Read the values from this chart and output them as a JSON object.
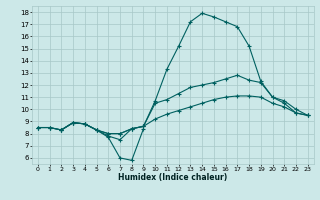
{
  "xlabel": "Humidex (Indice chaleur)",
  "xlim": [
    -0.5,
    23.5
  ],
  "ylim": [
    5.5,
    18.5
  ],
  "xticks": [
    0,
    1,
    2,
    3,
    4,
    5,
    6,
    7,
    8,
    9,
    10,
    11,
    12,
    13,
    14,
    15,
    16,
    17,
    18,
    19,
    20,
    21,
    22,
    23
  ],
  "yticks": [
    6,
    7,
    8,
    9,
    10,
    11,
    12,
    13,
    14,
    15,
    16,
    17,
    18
  ],
  "bg_color": "#cce8e8",
  "grid_color": "#a8c8c8",
  "line_color": "#006060",
  "curve1_x": [
    0,
    1,
    2,
    3,
    4,
    5,
    6,
    7,
    8,
    9,
    10,
    11,
    12,
    13,
    14,
    15,
    16,
    17,
    18,
    19,
    20,
    21,
    22,
    23
  ],
  "curve1_y": [
    8.5,
    8.5,
    8.3,
    8.9,
    8.8,
    8.3,
    8.0,
    8.0,
    8.4,
    8.6,
    10.7,
    13.3,
    15.2,
    17.2,
    17.9,
    17.6,
    17.2,
    16.8,
    15.2,
    12.3,
    11.0,
    10.5,
    9.7,
    9.5
  ],
  "curve2_x": [
    0,
    1,
    2,
    3,
    4,
    5,
    6,
    7,
    8,
    9,
    10,
    11,
    12,
    13,
    14,
    15,
    16,
    17,
    18,
    19,
    20,
    21,
    22,
    23
  ],
  "curve2_y": [
    8.5,
    8.5,
    8.3,
    8.9,
    8.8,
    8.3,
    8.0,
    8.0,
    8.4,
    8.6,
    9.2,
    9.6,
    9.9,
    10.2,
    10.5,
    10.8,
    11.0,
    11.1,
    11.1,
    11.0,
    10.5,
    10.2,
    9.7,
    9.5
  ],
  "curve3_x": [
    0,
    1,
    2,
    3,
    4,
    5,
    6,
    7,
    8,
    9,
    10,
    11,
    12,
    13,
    14,
    15,
    16,
    17,
    18,
    19,
    20,
    21,
    22,
    23
  ],
  "curve3_y": [
    8.5,
    8.5,
    8.3,
    8.9,
    8.8,
    8.3,
    7.8,
    7.5,
    8.4,
    8.6,
    10.5,
    10.8,
    11.3,
    11.8,
    12.0,
    12.2,
    12.5,
    12.8,
    12.4,
    12.2,
    11.0,
    10.7,
    10.0,
    9.5
  ],
  "curve4_x": [
    2,
    3,
    4,
    5,
    6,
    7,
    8,
    9
  ],
  "curve4_y": [
    8.3,
    8.9,
    8.8,
    8.3,
    7.7,
    6.0,
    5.8,
    8.4
  ]
}
